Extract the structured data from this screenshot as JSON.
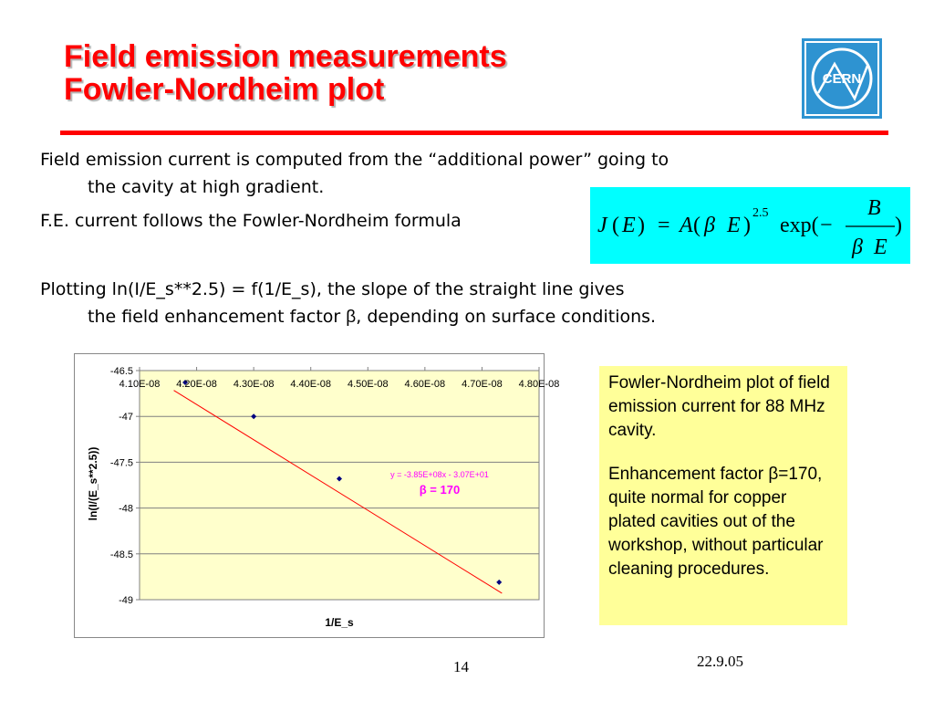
{
  "slide": {
    "title_line1": "Field emission measurements",
    "title_line2": "Fowler-Nordheim plot",
    "logo_text": "CERN",
    "bullet1_line1": "Field emission current is computed from the “additional power” going to",
    "bullet1_line2": "the cavity at high gradient.",
    "bullet2": "F.E. current follows the Fowler-Nordheim formula",
    "bullet3_line1": "Plotting ln(I/E_s**2.5) = f(1/E_s), the slope of the straight line gives",
    "bullet3_line2_a": "the field enhancement factor ",
    "bullet3_line2_beta": "β",
    "bullet3_line2_b": ", depending on surface conditions.",
    "formula": {
      "J": "J",
      "lp1": "(",
      "E1": "E",
      "rp1": ")",
      "eq": "=",
      "A": "A",
      "lp2": "(",
      "beta1": "β",
      "E2": "E",
      "rp2": ")",
      "exp_power": "2.5",
      "exp": "exp(",
      "minus": "−",
      "B": "B",
      "beta2": "β",
      "E3": "E",
      "rp3": ")"
    },
    "note_p1": "Fowler-Nordheim plot of field emission current for 88 MHz cavity.",
    "note_p2": "Enhancement factor β=170, quite normal for copper plated cavities out of the workshop, without particular cleaning procedures.",
    "page_number": "14",
    "date": "22.9.05",
    "colors": {
      "title": "#ff0000",
      "formula_bg": "#00ffff",
      "note_bg": "#ffff99",
      "plot_bg": "#ffffcc",
      "logo": "#2e93d1"
    }
  },
  "chart_data": {
    "type": "scatter",
    "title": "",
    "xlabel": "1/E_s",
    "ylabel": "ln(I/(E_s**2.5))",
    "x_tick_labels": [
      "4.10E-08",
      "4.20E-08",
      "4.30E-08",
      "4.40E-08",
      "4.50E-08",
      "4.60E-08",
      "4.70E-08",
      "4.80E-08"
    ],
    "y_tick_labels": [
      "-46.5",
      "-47",
      "-47.5",
      "-48",
      "-48.5",
      "-49"
    ],
    "xlim": [
      4.1e-08,
      4.8e-08
    ],
    "ylim": [
      -49,
      -46.5
    ],
    "x_axis_position": "top",
    "grid": "horizontal",
    "series": [
      {
        "x": [
          4.18e-08,
          4.3e-08,
          4.45e-08,
          4.73e-08
        ],
        "y": [
          -46.63,
          -47.0,
          -47.68,
          -48.81
        ],
        "color": "#000080"
      }
    ],
    "trendline": {
      "slope": -385000000.0,
      "intercept": -30.7,
      "color": "#ff0000"
    },
    "annotations": {
      "equation": "y = -3.85E+08x - 3.07E+01",
      "beta_label": "β = 170"
    }
  }
}
